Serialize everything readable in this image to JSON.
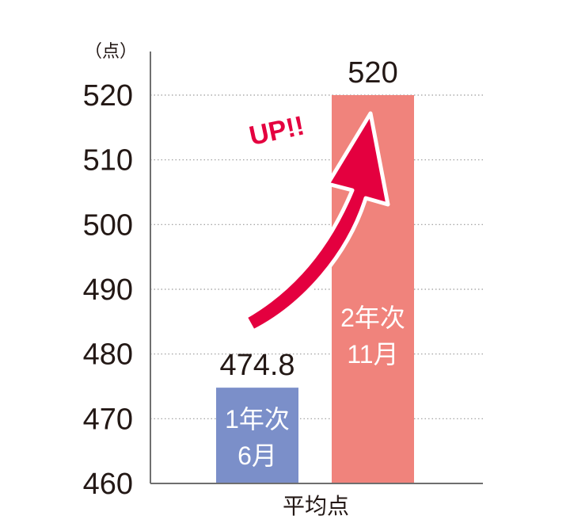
{
  "chart_data": {
    "type": "bar",
    "unit_label": "（点）",
    "xlabel": "平均点",
    "ylim": [
      460,
      520
    ],
    "yticks": [
      460,
      470,
      480,
      490,
      500,
      510,
      520
    ],
    "grid": true,
    "bars": [
      {
        "value": 474.8,
        "value_label": "474.8",
        "label_line1": "1年次",
        "label_line2": "6月",
        "color": "#7b8fc9"
      },
      {
        "value": 520,
        "value_label": "520",
        "label_line1": "2年次",
        "label_line2": "11月",
        "color": "#f0837c"
      }
    ],
    "annotation": {
      "text": "UP!!",
      "color": "#e4003f"
    }
  }
}
